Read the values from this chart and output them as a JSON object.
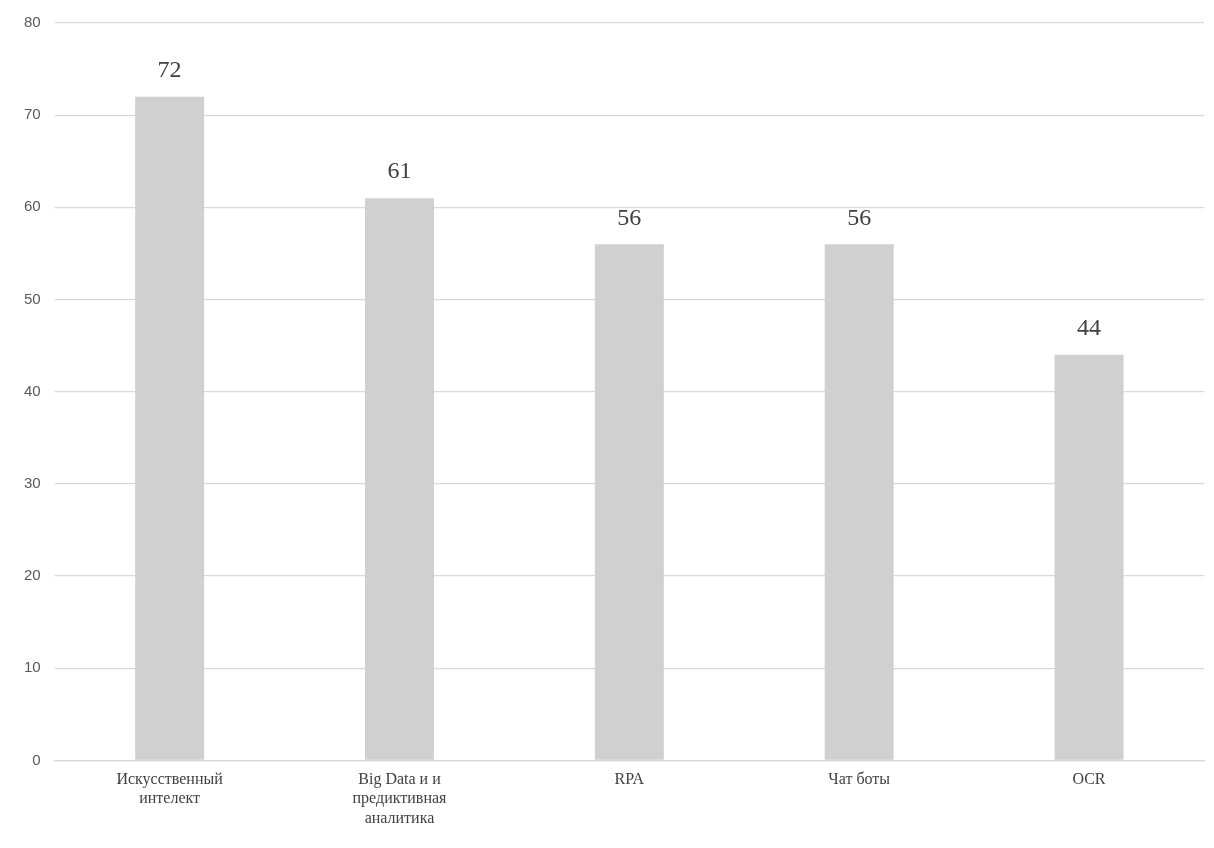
{
  "chart_data": {
    "type": "bar",
    "categories": [
      "Искусственный интелект",
      "Big Data и и предиктивная аналитика",
      "RPA",
      "Чат боты",
      "OCR"
    ],
    "values": [
      72,
      61,
      56,
      56,
      44
    ],
    "color": "#d0d0d0",
    "ylim": [
      0,
      80
    ],
    "yticks": [
      0,
      10,
      20,
      30,
      40,
      50,
      60,
      70,
      80
    ],
    "grid": "y",
    "data_labels": true,
    "legend": false
  }
}
